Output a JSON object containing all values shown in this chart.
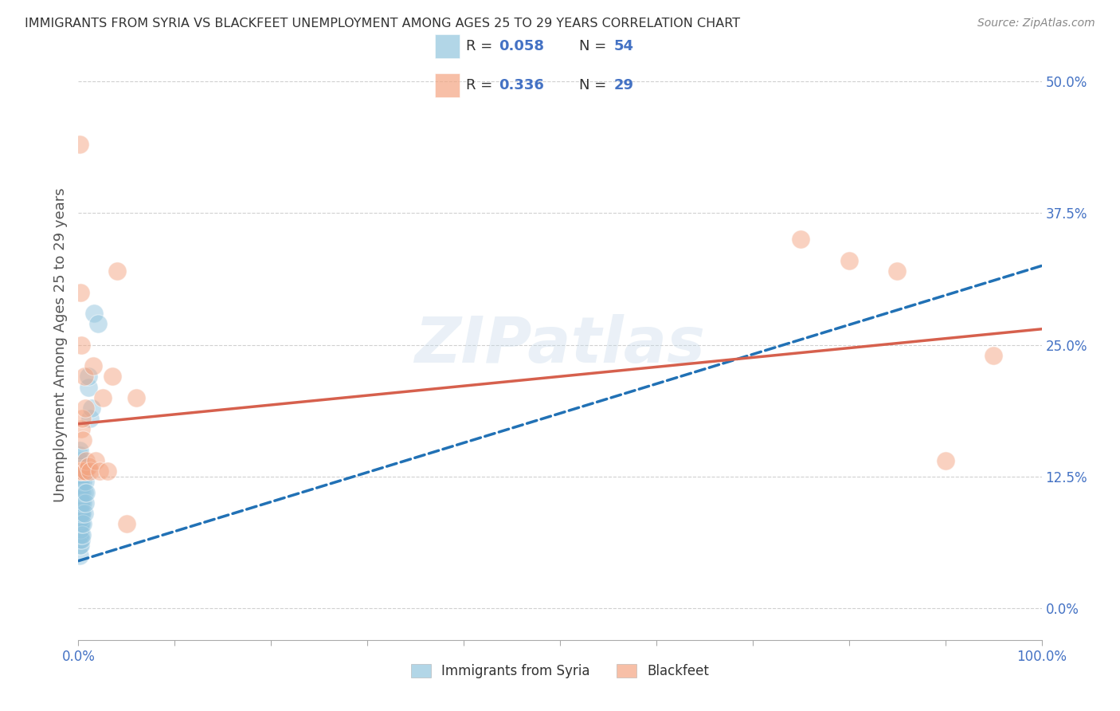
{
  "title": "IMMIGRANTS FROM SYRIA VS BLACKFEET UNEMPLOYMENT AMONG AGES 25 TO 29 YEARS CORRELATION CHART",
  "source": "Source: ZipAtlas.com",
  "xlabel": "",
  "ylabel": "Unemployment Among Ages 25 to 29 years",
  "xlim": [
    0,
    1.0
  ],
  "ylim": [
    -0.03,
    0.53
  ],
  "xticklabels_ends": [
    "0.0%",
    "100.0%"
  ],
  "yticks_right": [
    0.0,
    0.125,
    0.25,
    0.375,
    0.5
  ],
  "yticklabels_right": [
    "0.0%",
    "12.5%",
    "25.0%",
    "37.5%",
    "50.0%"
  ],
  "blue_scatter_x": [
    0.001,
    0.001,
    0.001,
    0.001,
    0.001,
    0.001,
    0.001,
    0.001,
    0.001,
    0.001,
    0.001,
    0.001,
    0.001,
    0.001,
    0.001,
    0.001,
    0.001,
    0.001,
    0.001,
    0.001,
    0.002,
    0.002,
    0.002,
    0.002,
    0.002,
    0.002,
    0.002,
    0.002,
    0.002,
    0.003,
    0.003,
    0.003,
    0.003,
    0.003,
    0.003,
    0.004,
    0.004,
    0.004,
    0.004,
    0.005,
    0.005,
    0.005,
    0.006,
    0.006,
    0.007,
    0.007,
    0.008,
    0.008,
    0.01,
    0.01,
    0.012,
    0.014,
    0.016,
    0.02
  ],
  "blue_scatter_y": [
    0.05,
    0.06,
    0.065,
    0.07,
    0.075,
    0.08,
    0.085,
    0.09,
    0.095,
    0.1,
    0.105,
    0.11,
    0.115,
    0.12,
    0.125,
    0.13,
    0.135,
    0.14,
    0.145,
    0.15,
    0.06,
    0.07,
    0.075,
    0.08,
    0.085,
    0.09,
    0.1,
    0.11,
    0.12,
    0.065,
    0.08,
    0.09,
    0.1,
    0.115,
    0.13,
    0.07,
    0.09,
    0.11,
    0.13,
    0.08,
    0.1,
    0.12,
    0.09,
    0.11,
    0.1,
    0.12,
    0.11,
    0.13,
    0.21,
    0.22,
    0.18,
    0.19,
    0.28,
    0.27
  ],
  "pink_scatter_x": [
    0.001,
    0.001,
    0.002,
    0.002,
    0.003,
    0.003,
    0.004,
    0.005,
    0.005,
    0.006,
    0.007,
    0.007,
    0.008,
    0.01,
    0.012,
    0.015,
    0.018,
    0.022,
    0.025,
    0.03,
    0.035,
    0.04,
    0.05,
    0.06,
    0.75,
    0.8,
    0.85,
    0.9,
    0.95
  ],
  "pink_scatter_y": [
    0.44,
    0.13,
    0.3,
    0.13,
    0.25,
    0.17,
    0.18,
    0.16,
    0.13,
    0.22,
    0.19,
    0.13,
    0.14,
    0.135,
    0.13,
    0.23,
    0.14,
    0.13,
    0.2,
    0.13,
    0.22,
    0.32,
    0.08,
    0.2,
    0.35,
    0.33,
    0.32,
    0.14,
    0.24
  ],
  "blue_line_intercept": 0.045,
  "blue_line_slope": 0.28,
  "pink_line_intercept": 0.175,
  "pink_line_slope": 0.09,
  "blue_color": "#92c5de",
  "blue_line_color": "#2171b5",
  "pink_color": "#f4a582",
  "pink_line_color": "#d6604d",
  "legend_r1": "0.058",
  "legend_n1": "54",
  "legend_r2": "0.336",
  "legend_n2": "29",
  "legend_series1": "Immigrants from Syria",
  "legend_series2": "Blackfeet",
  "watermark_text": "ZIPatlas",
  "title_color": "#333333",
  "axis_label_color": "#555555",
  "value_color": "#4472c4",
  "label_color": "#333333",
  "grid_color": "#d0d0d0",
  "background_color": "#ffffff"
}
